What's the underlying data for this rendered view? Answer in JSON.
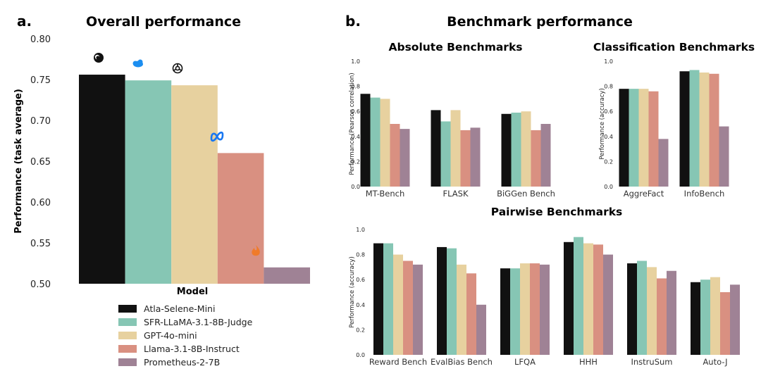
{
  "colors": {
    "atla": "#111111",
    "sfr": "#86c6b4",
    "gpt": "#e7d19f",
    "llama": "#d99081",
    "prometheus": "#9f8295"
  },
  "legend": [
    {
      "label": "Atla-Selene-Mini",
      "color_key": "atla"
    },
    {
      "label": "SFR-LLaMA-3.1-8B-Judge",
      "color_key": "sfr"
    },
    {
      "label": "GPT-4o-mini",
      "color_key": "gpt"
    },
    {
      "label": "Llama-3.1-8B-Instruct",
      "color_key": "llama"
    },
    {
      "label": "Prometheus-2-7B",
      "color_key": "prometheus"
    }
  ],
  "panel_a": {
    "letter": "a.",
    "title": "Overall performance",
    "icons": [
      "atla-logo-icon",
      "salesforce-cloud-icon",
      "openai-logo-icon",
      "meta-logo-icon",
      "prometheus-flame-icon"
    ]
  },
  "panel_b": {
    "letter": "b.",
    "title": "Benchmark performance"
  },
  "chart_data": [
    {
      "id": "overall",
      "type": "bar",
      "title": "Overall performance",
      "xlabel": "Model",
      "ylabel": "Performance (task average)",
      "ylim": [
        0.5,
        0.8
      ],
      "yticks": [
        "0.50",
        "0.55",
        "0.60",
        "0.65",
        "0.70",
        "0.75",
        "0.80"
      ],
      "ytick_values": [
        0.5,
        0.55,
        0.6,
        0.65,
        0.7,
        0.75,
        0.8
      ],
      "categories": [
        "Atla-Selene-Mini",
        "SFR-LLaMA-3.1-8B-Judge",
        "GPT-4o-mini",
        "Llama-3.1-8B-Instruct",
        "Prometheus-2-7B"
      ],
      "values": [
        0.756,
        0.749,
        0.743,
        0.66,
        0.52
      ]
    },
    {
      "id": "absolute",
      "type": "bar",
      "title": "Absolute Benchmarks",
      "ylabel": "Performance (Pearson correlation)",
      "ylim": [
        0.0,
        1.0
      ],
      "yticks": [
        "0.0",
        "0.2",
        "0.4",
        "0.6",
        "0.8",
        "1.0"
      ],
      "ytick_values": [
        0,
        0.2,
        0.4,
        0.6,
        0.8,
        1.0
      ],
      "categories": [
        "MT-Bench",
        "FLASK",
        "BiGGen Bench"
      ],
      "series": [
        {
          "name": "Atla-Selene-Mini",
          "values": [
            0.74,
            0.61,
            0.58
          ]
        },
        {
          "name": "SFR-LLaMA-3.1-8B-Judge",
          "values": [
            0.71,
            0.52,
            0.59
          ]
        },
        {
          "name": "GPT-4o-mini",
          "values": [
            0.7,
            0.61,
            0.6
          ]
        },
        {
          "name": "Llama-3.1-8B-Instruct",
          "values": [
            0.5,
            0.45,
            0.45
          ]
        },
        {
          "name": "Prometheus-2-7B",
          "values": [
            0.46,
            0.47,
            0.5
          ]
        }
      ]
    },
    {
      "id": "classification",
      "type": "bar",
      "title": "Classification Benchmarks",
      "ylabel": "Performance (accuracy)",
      "ylim": [
        0.0,
        1.0
      ],
      "yticks": [
        "0.0",
        "0.2",
        "0.4",
        "0.6",
        "0.8",
        "1.0"
      ],
      "ytick_values": [
        0,
        0.2,
        0.4,
        0.6,
        0.8,
        1.0
      ],
      "categories": [
        "AggreFact",
        "InfoBench"
      ],
      "series": [
        {
          "name": "Atla-Selene-Mini",
          "values": [
            0.78,
            0.92
          ]
        },
        {
          "name": "SFR-LLaMA-3.1-8B-Judge",
          "values": [
            0.78,
            0.93
          ]
        },
        {
          "name": "GPT-4o-mini",
          "values": [
            0.78,
            0.91
          ]
        },
        {
          "name": "Llama-3.1-8B-Instruct",
          "values": [
            0.76,
            0.9
          ]
        },
        {
          "name": "Prometheus-2-7B",
          "values": [
            0.38,
            0.48
          ]
        }
      ]
    },
    {
      "id": "pairwise",
      "type": "bar",
      "title": "Pairwise Benchmarks",
      "ylabel": "Performance (accuracy)",
      "ylim": [
        0.0,
        1.0
      ],
      "yticks": [
        "0.0",
        "0.2",
        "0.4",
        "0.6",
        "0.8",
        "1.0"
      ],
      "ytick_values": [
        0,
        0.2,
        0.4,
        0.6,
        0.8,
        1.0
      ],
      "categories": [
        "Reward Bench",
        "EvalBias Bench",
        "LFQA",
        "HHH",
        "InstruSum",
        "Auto-J"
      ],
      "series": [
        {
          "name": "Atla-Selene-Mini",
          "values": [
            0.89,
            0.86,
            0.69,
            0.9,
            0.73,
            0.58
          ]
        },
        {
          "name": "SFR-LLaMA-3.1-8B-Judge",
          "values": [
            0.89,
            0.85,
            0.69,
            0.94,
            0.75,
            0.6
          ]
        },
        {
          "name": "GPT-4o-mini",
          "values": [
            0.8,
            0.72,
            0.73,
            0.89,
            0.7,
            0.62
          ]
        },
        {
          "name": "Llama-3.1-8B-Instruct",
          "values": [
            0.75,
            0.65,
            0.73,
            0.88,
            0.61,
            0.5
          ]
        },
        {
          "name": "Prometheus-2-7B",
          "values": [
            0.72,
            0.4,
            0.72,
            0.8,
            0.67,
            0.56
          ]
        }
      ]
    }
  ]
}
